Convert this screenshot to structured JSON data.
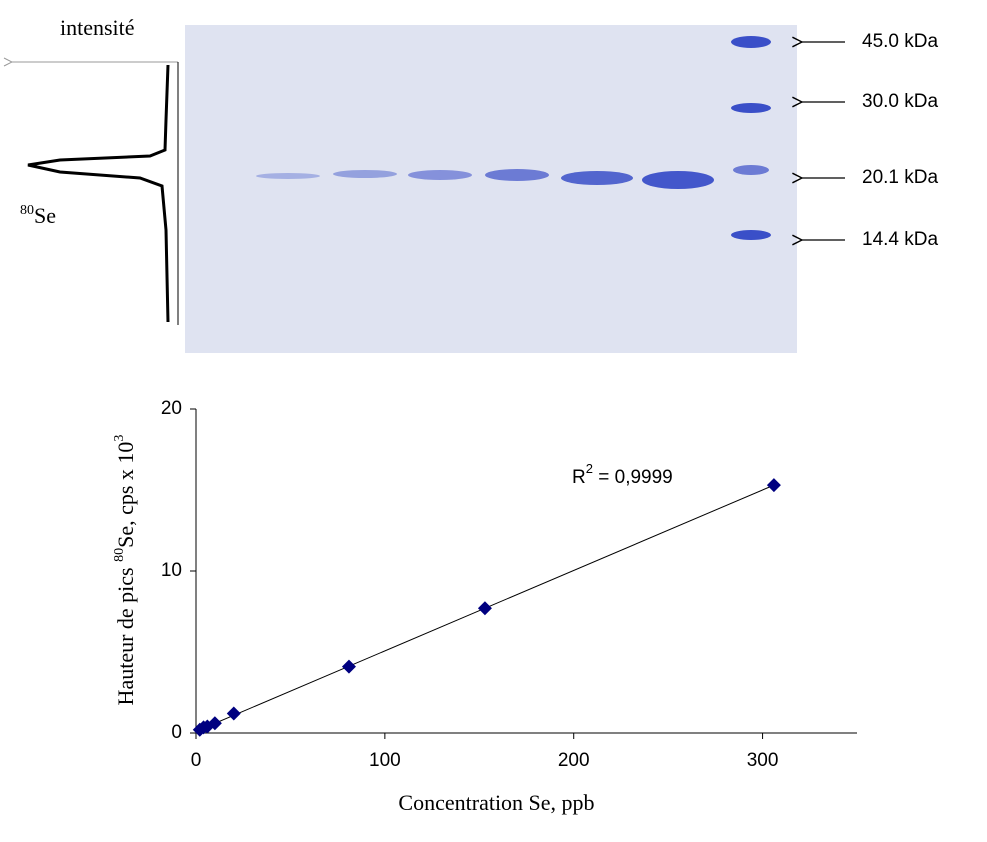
{
  "gel": {
    "intensity_label": "intensité",
    "isotope_mass": "80",
    "isotope": "Se",
    "markers": [
      "45.0 kDa",
      "30.0 kDa",
      "20.1 kDa",
      "14.4 kDa"
    ]
  },
  "chart_data": {
    "type": "scatter",
    "color": "#000080",
    "x": [
      2,
      4,
      6,
      10,
      20,
      81,
      153,
      306
    ],
    "values": [
      0.2,
      0.35,
      0.4,
      0.6,
      1.2,
      4.1,
      7.7,
      15.3
    ],
    "trendline": {
      "x": [
        0,
        306
      ],
      "y": [
        0.1,
        15.3
      ]
    },
    "annotation": [
      "R",
      "2",
      " = 0,9999"
    ],
    "xlabel": "Concentration Se, ppb",
    "ylabel": [
      "Hauteur de pics ",
      "80",
      "Se, cps x 10",
      "3"
    ],
    "xlim": [
      0,
      350
    ],
    "ylim": [
      0,
      20
    ],
    "xticks": [
      0,
      100,
      200,
      300
    ],
    "yticks": [
      0,
      10,
      20
    ]
  }
}
